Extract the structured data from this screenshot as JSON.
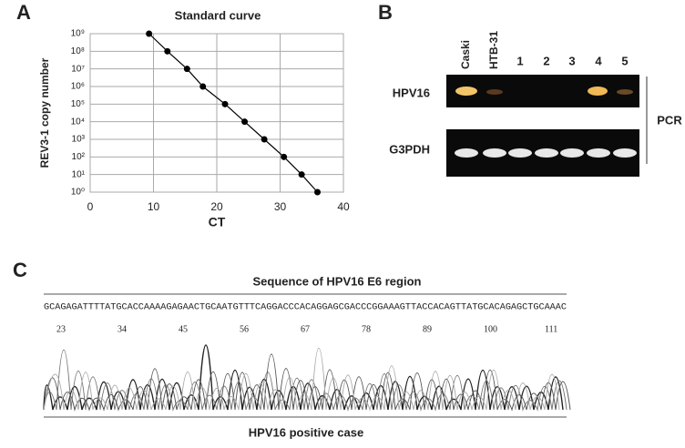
{
  "panel_labels": [
    "A",
    "B",
    "C"
  ],
  "chart_data": {
    "type": "line",
    "title": "Standard curve",
    "x_label": "CT",
    "y_label": "REV3-1  copy number",
    "x": [
      9.3,
      12.2,
      15.3,
      17.8,
      21.3,
      24.4,
      27.5,
      30.6,
      33.4,
      35.9
    ],
    "series": [
      {
        "color": "#000000",
        "values": [
          1000000000,
          100000000,
          10000000,
          1000000,
          100000,
          10000,
          1000,
          100,
          10,
          1
        ]
      }
    ],
    "xlim": [
      0,
      40
    ],
    "xticks": [
      0,
      10,
      20,
      30,
      40
    ],
    "ylim": [
      1,
      1000000000
    ],
    "log_y": true,
    "grid": true,
    "yticks": [
      {
        "value": 1,
        "label": "10⁰"
      },
      {
        "value": 10,
        "label": "10¹"
      },
      {
        "value": 100,
        "label": "10²"
      },
      {
        "value": 1000,
        "label": "10³"
      },
      {
        "value": 10000,
        "label": "10⁴"
      },
      {
        "value": 100000,
        "label": "10⁵"
      },
      {
        "value": 1000000,
        "label": "10⁶"
      },
      {
        "value": 10000000,
        "label": "10⁷"
      },
      {
        "value": 100000000,
        "label": "10⁸"
      },
      {
        "value": 1000000000,
        "label": "10⁹"
      }
    ]
  },
  "gel": {
    "lanes": [
      "Caski",
      "HTB-31",
      "1",
      "2",
      "3",
      "4",
      "5"
    ],
    "rows": [
      "HPV16",
      "G3PDH"
    ],
    "side_label": "PCR"
  },
  "sequence": {
    "title": "Sequence of HPV16 E6 region",
    "bases": "GCAGAGATTTTATGCACCAAAAGAGAACTGCAATGTTTCAGGACCCACAGGAGCGACCCGGAAAGTTACCACAGTTATGCACAGAGCTGCAAAC",
    "positions": [
      "23",
      "34",
      "45",
      "56",
      "67",
      "78",
      "89",
      "100",
      "111"
    ],
    "caption": "HPV16 positive case"
  }
}
